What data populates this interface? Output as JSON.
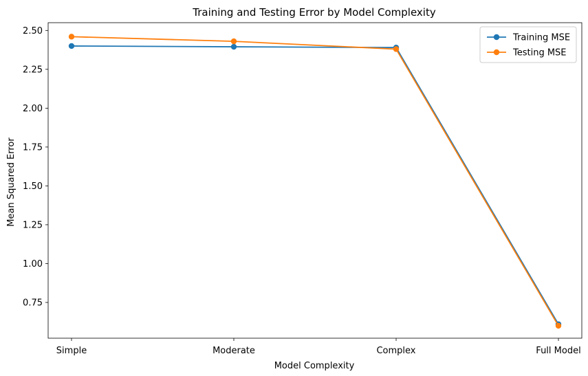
{
  "chart_data": {
    "type": "line",
    "title": "Training and Testing Error by Model Complexity",
    "xlabel": "Model Complexity",
    "ylabel": "Mean Squared Error",
    "categories": [
      "Simple",
      "Moderate",
      "Complex",
      "Full Model"
    ],
    "series": [
      {
        "name": "Training MSE",
        "color": "#1f77b4",
        "values": [
          2.4,
          2.395,
          2.39,
          0.61
        ]
      },
      {
        "name": "Testing MSE",
        "color": "#ff7f0e",
        "values": [
          2.46,
          2.43,
          2.38,
          0.6
        ]
      }
    ],
    "ylim": [
      0.52,
      2.55
    ],
    "yticks": [
      "0.75",
      "1.00",
      "1.25",
      "1.50",
      "1.75",
      "2.00",
      "2.25",
      "2.50"
    ],
    "grid": false,
    "legend": "top-right"
  }
}
